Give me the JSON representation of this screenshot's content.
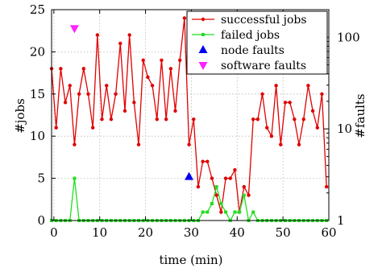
{
  "chart_data": {
    "type": "line",
    "xlabel": "time (min)",
    "ylabel": "#jobs",
    "ylabel_right": "#faults",
    "xlim": [
      -0.5,
      60
    ],
    "ylim": [
      0,
      25
    ],
    "y2lim": [
      1,
      200
    ],
    "y2_scale": "log",
    "xticks": [
      0,
      10,
      20,
      30,
      40,
      50,
      60
    ],
    "yticks": [
      0,
      5,
      10,
      15,
      20,
      25
    ],
    "y2ticks": [
      1,
      10,
      100
    ],
    "grid": true,
    "legend_position": "top-right",
    "series": [
      {
        "name": "successful jobs",
        "axis": "left",
        "color": "#e00000",
        "marker": "circle",
        "x": [
          -0.5,
          0.5,
          1.5,
          2.5,
          3.5,
          4.5,
          5.5,
          6.5,
          7.5,
          8.5,
          9.5,
          10.5,
          11.5,
          12.5,
          13.5,
          14.5,
          15.5,
          16.5,
          17.5,
          18.5,
          19.5,
          20.5,
          21.5,
          22.5,
          23.5,
          24.5,
          25.5,
          26.5,
          27.5,
          28.5,
          29.5,
          30.5,
          31.5,
          32.5,
          33.5,
          34.5,
          35.5,
          36.5,
          37.5,
          38.5,
          39.5,
          40.5,
          41.5,
          42.5,
          43.5,
          44.5,
          45.5,
          46.5,
          47.5,
          48.5,
          49.5,
          50.5,
          51.5,
          52.5,
          53.5,
          54.5,
          55.5,
          56.5,
          57.5,
          58.5,
          59.5
        ],
        "y": [
          18,
          11,
          18,
          14,
          16,
          9,
          15,
          18,
          15,
          11,
          22,
          12,
          16,
          12,
          15,
          21,
          13,
          22,
          14,
          9,
          19,
          17,
          16,
          12,
          19,
          12,
          18,
          13,
          19,
          24,
          9,
          12,
          4,
          7,
          7,
          5,
          3,
          1,
          5,
          5,
          6,
          1,
          4,
          3,
          12,
          12,
          15,
          11,
          10,
          16,
          9,
          14,
          14,
          12,
          9,
          12,
          16,
          13,
          11,
          15,
          4
        ]
      },
      {
        "name": "failed jobs",
        "axis": "left",
        "color": "#22dd22",
        "marker": "square",
        "x": [
          -0.5,
          0.5,
          1.5,
          2.5,
          3.5,
          4.5,
          5.5,
          6.5,
          7.5,
          8.5,
          9.5,
          10.5,
          11.5,
          12.5,
          13.5,
          14.5,
          15.5,
          16.5,
          17.5,
          18.5,
          19.5,
          20.5,
          21.5,
          22.5,
          23.5,
          24.5,
          25.5,
          26.5,
          27.5,
          28.5,
          29.5,
          30.5,
          31.5,
          32.5,
          33.5,
          34.5,
          35.5,
          36.5,
          37.5,
          38.5,
          39.5,
          40.5,
          41.5,
          42.5,
          43.5,
          44.5,
          45.5,
          46.5,
          47.5,
          48.5,
          49.5,
          50.5,
          51.5,
          52.5,
          53.5,
          54.5,
          55.5,
          56.5,
          57.5,
          58.5,
          59.5
        ],
        "y": [
          0,
          0,
          0,
          0,
          0,
          5,
          0,
          0,
          0,
          0,
          0,
          0,
          0,
          0,
          0,
          0,
          0,
          0,
          0,
          0,
          0,
          0,
          0,
          0,
          0,
          0,
          0,
          0,
          0,
          0,
          0,
          0,
          0,
          1,
          1,
          2,
          4,
          2,
          1,
          0,
          1,
          1,
          3,
          0,
          1,
          0,
          0,
          0,
          0,
          0,
          0,
          0,
          0,
          0,
          0,
          0,
          0,
          0,
          0,
          0,
          0
        ]
      },
      {
        "name": "node faults",
        "axis": "right",
        "color": "#0000ee",
        "marker": "triangle-up",
        "x": [
          29.5
        ],
        "y": [
          3
        ]
      },
      {
        "name": "software faults",
        "axis": "right",
        "color": "#ff22ff",
        "marker": "triangle-down",
        "x": [
          4.5
        ],
        "y": [
          125
        ]
      }
    ]
  }
}
